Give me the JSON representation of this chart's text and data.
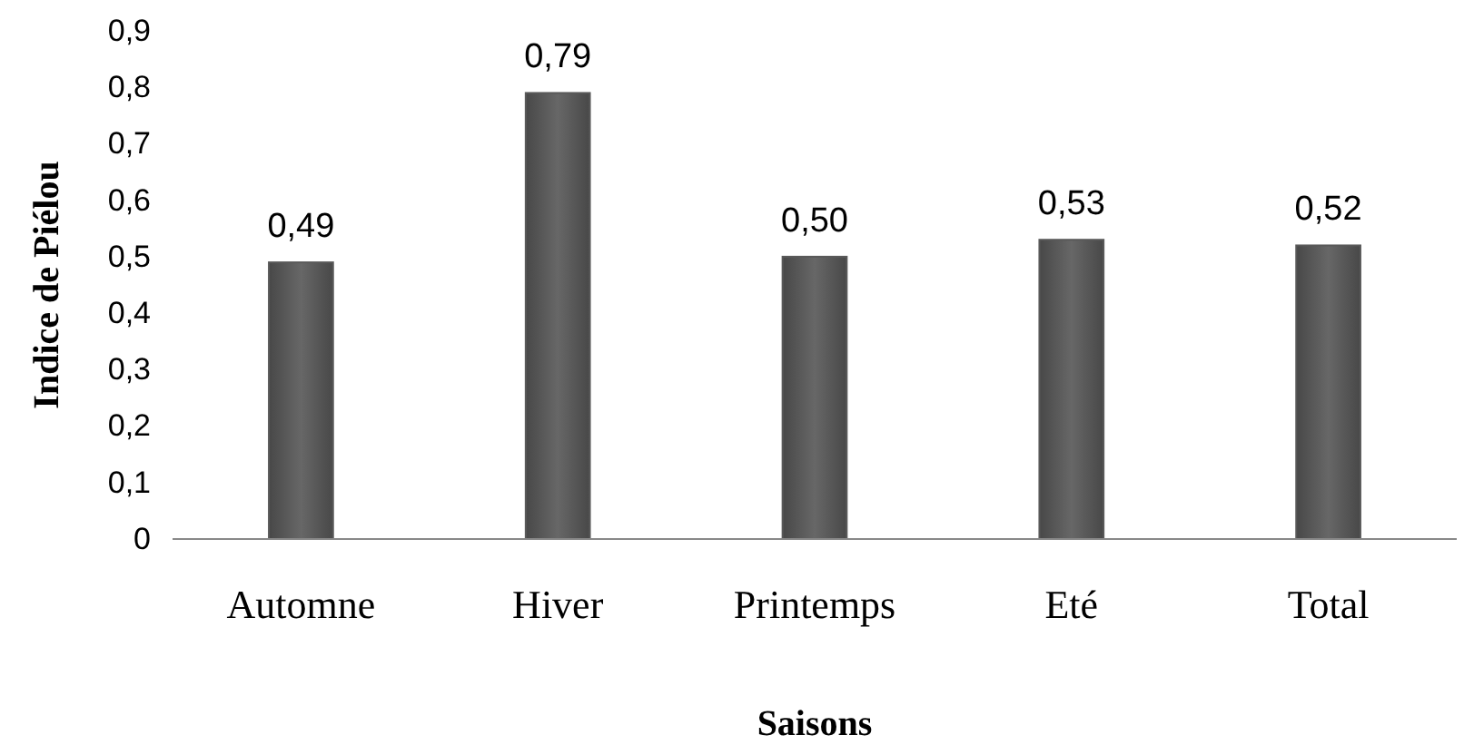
{
  "chart_data": {
    "type": "bar",
    "xlabel": "Saisons",
    "ylabel": "Indice de Piélou",
    "categories": [
      "Automne",
      "Hiver",
      "Printemps",
      "Eté",
      "Total"
    ],
    "values": [
      0.49,
      0.79,
      0.5,
      0.53,
      0.52
    ],
    "value_labels": [
      "0,49",
      "0,79",
      "0,50",
      "0,53",
      "0,52"
    ],
    "color": "#595959",
    "ylim": [
      0,
      0.9
    ],
    "yticks": [
      0,
      {
        "value": 0.1,
        "label": "0,1"
      },
      {
        "value": 0.2,
        "label": "0,2"
      },
      {
        "value": 0.3,
        "label": "0,3"
      },
      {
        "value": 0.4,
        "label": "0,4"
      },
      {
        "value": 0.5,
        "label": "0,5"
      },
      {
        "value": 0.6,
        "label": "0,6"
      },
      {
        "value": 0.7,
        "label": "0,7"
      },
      {
        "value": 0.8,
        "label": "0,8"
      },
      {
        "value": 0.9,
        "label": "0,9"
      }
    ],
    "grid": false
  }
}
